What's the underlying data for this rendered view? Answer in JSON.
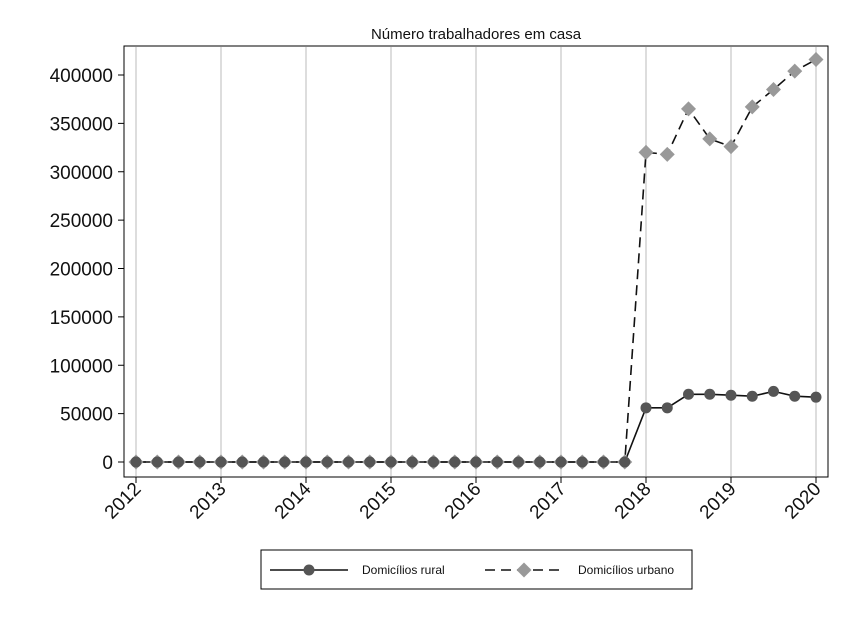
{
  "chart_data": {
    "type": "line",
    "title": "Número trabalhadores em casa",
    "xlabel": "",
    "ylabel": "",
    "xlim": [
      2012,
      2020
    ],
    "ylim": [
      0,
      400000
    ],
    "x_ticks": [
      "2012",
      "2013",
      "2014",
      "2015",
      "2016",
      "2017",
      "2018",
      "2019",
      "2020"
    ],
    "y_ticks": [
      "0",
      "50000",
      "100000",
      "150000",
      "200000",
      "250000",
      "300000",
      "350000",
      "400000"
    ],
    "grid": "vertical",
    "legend_position": "bottom",
    "x": [
      2012.0,
      2012.25,
      2012.5,
      2012.75,
      2013.0,
      2013.25,
      2013.5,
      2013.75,
      2014.0,
      2014.25,
      2014.5,
      2014.75,
      2015.0,
      2015.25,
      2015.5,
      2015.75,
      2016.0,
      2016.25,
      2016.5,
      2016.75,
      2017.0,
      2017.25,
      2017.5,
      2017.75,
      2018.0,
      2018.25,
      2018.5,
      2018.75,
      2019.0,
      2019.25,
      2019.5,
      2019.75,
      2020.0
    ],
    "series": [
      {
        "name": "Domicílios rural",
        "color": "#555555",
        "line_style": "solid",
        "marker": "circle",
        "values": [
          0,
          0,
          0,
          0,
          0,
          0,
          0,
          0,
          0,
          0,
          0,
          0,
          0,
          0,
          0,
          0,
          0,
          0,
          0,
          0,
          0,
          0,
          0,
          0,
          56000,
          56000,
          70000,
          70000,
          69000,
          68000,
          73000,
          68000,
          67000
        ]
      },
      {
        "name": "Domicílios urbano",
        "color": "#999999",
        "line_style": "dashed",
        "marker": "diamond",
        "values": [
          0,
          0,
          0,
          0,
          0,
          0,
          0,
          0,
          0,
          0,
          0,
          0,
          0,
          0,
          0,
          0,
          0,
          0,
          0,
          0,
          0,
          0,
          0,
          0,
          320000,
          318000,
          365000,
          334000,
          326000,
          367000,
          385000,
          404000,
          416000
        ]
      }
    ]
  }
}
